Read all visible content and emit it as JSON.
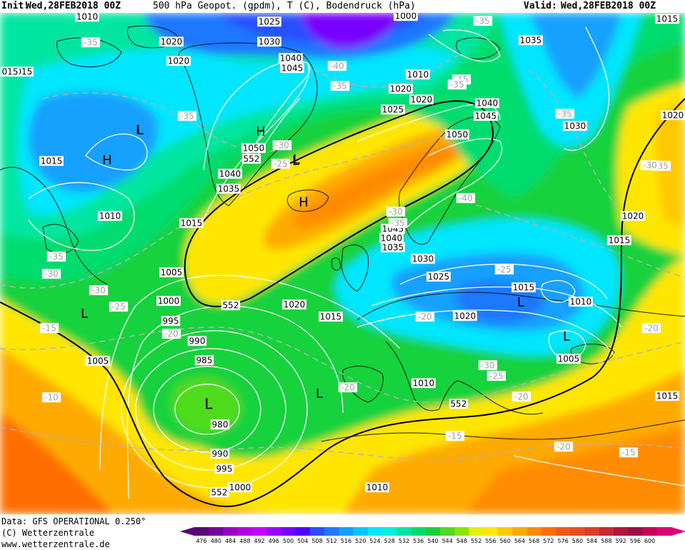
{
  "header": {
    "init_label": "Init:",
    "init_value": "Wed,28FEB2018 00Z",
    "title": "500 hPa Geopot. (gpdm), T (C), Bodendruck (hPa)",
    "valid_label": "Valid:",
    "valid_value": "Wed,28FEB2018 00Z"
  },
  "footer": {
    "data_source": "Data: GFS OPERATIONAL 0.250°",
    "copyright": "(C) Wetterzentrale",
    "website": "www.wetterzentrale.de"
  },
  "legend": {
    "ticks": [
      "476",
      "480",
      "484",
      "488",
      "492",
      "496",
      "500",
      "504",
      "508",
      "512",
      "516",
      "520",
      "524",
      "528",
      "532",
      "536",
      "540",
      "544",
      "548",
      "552",
      "556",
      "560",
      "564",
      "568",
      "572",
      "576",
      "580",
      "584",
      "588",
      "592",
      "596",
      "600"
    ],
    "colors": [
      "#5a0078",
      "#7800a0",
      "#9a00c8",
      "#b400e6",
      "#c800ff",
      "#a000ff",
      "#7800ff",
      "#5000ff",
      "#2850ff",
      "#1e78ff",
      "#14a0ff",
      "#00c8ff",
      "#00e6ff",
      "#00f0dc",
      "#00e6a0",
      "#00dc6e",
      "#14d23c",
      "#50dc1e",
      "#8ce600",
      "#e6f000",
      "#ffe600",
      "#ffc800",
      "#ffaa00",
      "#ff8c00",
      "#ff6e00",
      "#f05a14",
      "#e6501e",
      "#dc3c28",
      "#c82832",
      "#b4143c",
      "#a00a46",
      "#c8005a",
      "#dc0078"
    ]
  },
  "pressure_labels": [
    {
      "text": "1010"
    },
    {
      "text": "1025"
    },
    {
      "text": "1000"
    },
    {
      "text": "1020"
    },
    {
      "text": "1030"
    },
    {
      "text": "1035"
    },
    {
      "text": "1040"
    },
    {
      "text": "1045"
    },
    {
      "text": "1020"
    },
    {
      "text": "1015"
    },
    {
      "text": "1010"
    },
    {
      "text": "1015"
    },
    {
      "text": "1020"
    },
    {
      "text": "1025"
    },
    {
      "text": "1040"
    },
    {
      "text": "1045"
    },
    {
      "text": "1030"
    },
    {
      "text": "1050"
    },
    {
      "text": "1020"
    },
    {
      "text": "1050"
    },
    {
      "text": "1040"
    },
    {
      "text": "1035"
    },
    {
      "text": "1015"
    },
    {
      "text": "1010"
    },
    {
      "text": "1015"
    },
    {
      "text": "1005"
    },
    {
      "text": "1000"
    },
    {
      "text": "995"
    },
    {
      "text": "990"
    },
    {
      "text": "985"
    },
    {
      "text": "980"
    },
    {
      "text": "990"
    },
    {
      "text": "995"
    },
    {
      "text": "1000"
    },
    {
      "text": "1005"
    },
    {
      "text": "1020"
    },
    {
      "text": "1015"
    },
    {
      "text": "1045"
    },
    {
      "text": "1040"
    },
    {
      "text": "1035"
    },
    {
      "text": "1030"
    },
    {
      "text": "1025"
    },
    {
      "text": "1020"
    },
    {
      "text": "1015"
    },
    {
      "text": "1010"
    },
    {
      "text": "1005"
    },
    {
      "text": "1010"
    },
    {
      "text": "1010"
    },
    {
      "text": "1020"
    },
    {
      "text": "1015"
    },
    {
      "text": "1020"
    },
    {
      "text": "1015"
    },
    {
      "text": "015"
    }
  ],
  "temperature_labels": [
    {
      "text": "-35"
    },
    {
      "text": "-35"
    },
    {
      "text": "-40"
    },
    {
      "text": "-35"
    },
    {
      "text": "-30"
    },
    {
      "text": "-25"
    },
    {
      "text": "-30"
    },
    {
      "text": "-35"
    },
    {
      "text": "-30"
    },
    {
      "text": "-25"
    },
    {
      "text": "-20"
    },
    {
      "text": "-20"
    },
    {
      "text": "-15"
    },
    {
      "text": "-10"
    },
    {
      "text": "-20"
    },
    {
      "text": "-15"
    },
    {
      "text": "-40"
    },
    {
      "text": "-30"
    },
    {
      "text": "-35"
    },
    {
      "text": "-35"
    },
    {
      "text": "-35"
    },
    {
      "text": "-30"
    },
    {
      "text": "-25"
    },
    {
      "text": "-20"
    },
    {
      "text": "-15"
    },
    {
      "text": "-20"
    },
    {
      "text": "-15"
    },
    {
      "text": "-20"
    },
    {
      "text": "-25"
    },
    {
      "text": "-35"
    },
    {
      "text": "-30"
    },
    {
      "text": "-35"
    }
  ],
  "height_labels": [
    {
      "text": "552"
    },
    {
      "text": "552"
    },
    {
      "text": "552"
    },
    {
      "text": "552"
    }
  ],
  "pressure_centers": [
    {
      "text": "L"
    },
    {
      "text": "H"
    },
    {
      "text": "H"
    },
    {
      "text": "L"
    },
    {
      "text": "H"
    },
    {
      "text": "L"
    },
    {
      "text": "L"
    },
    {
      "text": "L"
    },
    {
      "text": "L"
    },
    {
      "text": "L"
    },
    {
      "text": "L"
    },
    {
      "text": "L"
    }
  ]
}
